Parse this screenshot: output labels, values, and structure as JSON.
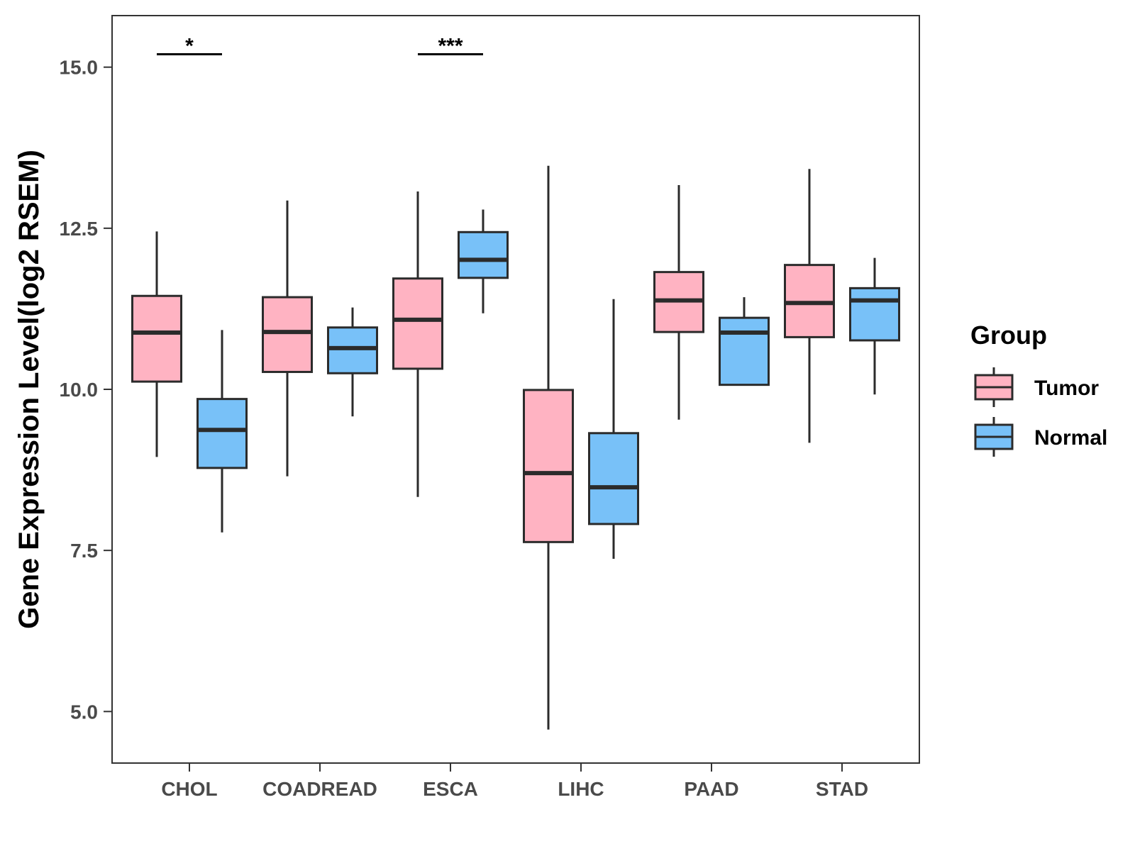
{
  "chart_data": {
    "type": "boxplot",
    "title": "",
    "xlabel": "",
    "ylabel": "Gene Expression Level(log2 RSEM)",
    "ylim": [
      4.2,
      15.8
    ],
    "yticks": [
      5.0,
      7.5,
      10.0,
      12.5,
      15.0
    ],
    "ytick_labels": [
      "5.0",
      "7.5",
      "10.0",
      "12.5",
      "15.0"
    ],
    "categories": [
      "CHOL",
      "COADREAD",
      "ESCA",
      "LIHC",
      "PAAD",
      "STAD"
    ],
    "grid": false,
    "legend": {
      "title": "Group",
      "position": "right",
      "entries": [
        "Tumor",
        "Normal"
      ]
    },
    "series": [
      {
        "name": "Tumor",
        "color": "#FFB3C2",
        "boxes": [
          {
            "category": "CHOL",
            "whisker_low": 8.95,
            "q1": 10.12,
            "median": 10.88,
            "q3": 11.45,
            "whisker_high": 12.45
          },
          {
            "category": "COADREAD",
            "whisker_low": 8.65,
            "q1": 10.27,
            "median": 10.89,
            "q3": 11.43,
            "whisker_high": 12.93
          },
          {
            "category": "ESCA",
            "whisker_low": 8.33,
            "q1": 10.32,
            "median": 11.08,
            "q3": 11.72,
            "whisker_high": 13.07
          },
          {
            "category": "LIHC",
            "whisker_low": 4.72,
            "q1": 7.63,
            "median": 8.7,
            "q3": 9.99,
            "whisker_high": 13.47
          },
          {
            "category": "PAAD",
            "whisker_low": 9.53,
            "q1": 10.89,
            "median": 11.38,
            "q3": 11.82,
            "whisker_high": 13.17
          },
          {
            "category": "STAD",
            "whisker_low": 9.17,
            "q1": 10.81,
            "median": 11.34,
            "q3": 11.93,
            "whisker_high": 13.42
          }
        ]
      },
      {
        "name": "Normal",
        "color": "#78C1F8",
        "boxes": [
          {
            "category": "CHOL",
            "whisker_low": 7.78,
            "q1": 8.78,
            "median": 9.37,
            "q3": 9.85,
            "whisker_high": 10.92
          },
          {
            "category": "COADREAD",
            "whisker_low": 9.58,
            "q1": 10.25,
            "median": 10.64,
            "q3": 10.96,
            "whisker_high": 11.27
          },
          {
            "category": "ESCA",
            "whisker_low": 11.18,
            "q1": 11.73,
            "median": 12.01,
            "q3": 12.44,
            "whisker_high": 12.79
          },
          {
            "category": "LIHC",
            "whisker_low": 7.37,
            "q1": 7.91,
            "median": 8.48,
            "q3": 9.32,
            "whisker_high": 11.4
          },
          {
            "category": "PAAD",
            "whisker_low": 10.07,
            "q1": 10.07,
            "median": 10.88,
            "q3": 11.11,
            "whisker_high": 11.43
          },
          {
            "category": "STAD",
            "whisker_low": 9.92,
            "q1": 10.76,
            "median": 11.38,
            "q3": 11.57,
            "whisker_high": 12.04
          }
        ]
      }
    ],
    "annotations": [
      {
        "category": "CHOL",
        "label": "*",
        "y": 15.2
      },
      {
        "category": "ESCA",
        "label": "***",
        "y": 15.2
      }
    ]
  }
}
